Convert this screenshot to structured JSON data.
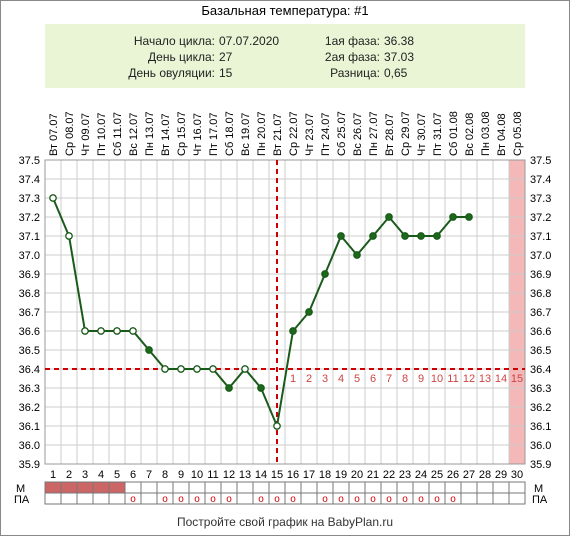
{
  "title": "Базальная температура: #1",
  "info": {
    "cycle_start_label": "Начало цикла:",
    "cycle_start_value": "07.07.2020",
    "cycle_day_label": "День цикла:",
    "cycle_day_value": "27",
    "ovulation_day_label": "День овуляции:",
    "ovulation_day_value": "15",
    "phase1_label": "1ая фаза:",
    "phase1_value": "36.38",
    "phase2_label": "2ая фаза:",
    "phase2_value": "37.03",
    "diff_label": "Разница:",
    "diff_value": "0,65"
  },
  "footer": "Постройте свой график на BabyPlan.ru",
  "chart_data": {
    "type": "line",
    "dates": [
      "Вт 07.07",
      "Ср 08.07",
      "Чт 09.07",
      "Пт 10.07",
      "Сб 11.07",
      "Вс 12.07",
      "Пн 13.07",
      "Вт 14.07",
      "Ср 15.07",
      "Чт 16.07",
      "Пт 17.07",
      "Сб 18.07",
      "Вс 19.07",
      "Пн 20.07",
      "Вт 21.07",
      "Ср 22.07",
      "Чт 23.07",
      "Пт 24.07",
      "Сб 25.07",
      "Вс 26.07",
      "Пн 27.07",
      "Вт 28.07",
      "Ср 29.07",
      "Чт 30.07",
      "Пт 31.07",
      "Сб 01.08",
      "Вс 02.08",
      "Пн 03.08",
      "Вт 04.08",
      "Ср 05.08"
    ],
    "days": [
      "1",
      "2",
      "3",
      "4",
      "5",
      "6",
      "7",
      "8",
      "9",
      "10",
      "11",
      "12",
      "13",
      "14",
      "15",
      "16",
      "17",
      "18",
      "19",
      "20",
      "21",
      "22",
      "23",
      "24",
      "25",
      "26",
      "27",
      "28",
      "29",
      "30"
    ],
    "temperatures": [
      37.3,
      37.1,
      36.6,
      36.6,
      36.6,
      36.6,
      36.5,
      36.4,
      36.4,
      36.4,
      36.4,
      36.3,
      36.4,
      36.3,
      36.1,
      36.6,
      36.7,
      36.9,
      37.1,
      37.0,
      37.1,
      37.2,
      37.1,
      37.1,
      37.1,
      37.2,
      37.2,
      null,
      null,
      null
    ],
    "open_markers": [
      1,
      2,
      3,
      4,
      5,
      6,
      8,
      9,
      10,
      11,
      13,
      15
    ],
    "ylim": [
      35.9,
      37.5
    ],
    "yticks": [
      "35.9",
      "36.0",
      "36.1",
      "36.2",
      "36.3",
      "36.4",
      "36.5",
      "36.6",
      "36.7",
      "36.8",
      "36.9",
      "37.0",
      "37.1",
      "37.2",
      "37.3",
      "37.4",
      "37.5"
    ],
    "coverline": 36.4,
    "ovulation_day": 15,
    "luteal_labels": [
      "1",
      "2",
      "3",
      "4",
      "5",
      "6",
      "7",
      "8",
      "9",
      "10",
      "11",
      "12",
      "13",
      "14",
      "15"
    ],
    "expected_period_day": 30,
    "menstruation_days": [
      1,
      2,
      3,
      4,
      5
    ],
    "intercourse_days": [
      6,
      8,
      9,
      10,
      11,
      12,
      14,
      15,
      16,
      18,
      19,
      20,
      21,
      22,
      23,
      24,
      25,
      26
    ],
    "row_labels": {
      "m": "М",
      "pa": "ПА"
    },
    "intercourse_marker": "o",
    "grid": true,
    "colors": {
      "line": "#1a5a1a",
      "marker_fill": "#1a6a1a",
      "coverline": "#cc0000",
      "expected_period": "#f4b8b8",
      "menstruation": "#cc6666",
      "luteal_label": "#cc4444",
      "intercourse": "#cc0000",
      "grid": "#cccccc"
    }
  }
}
